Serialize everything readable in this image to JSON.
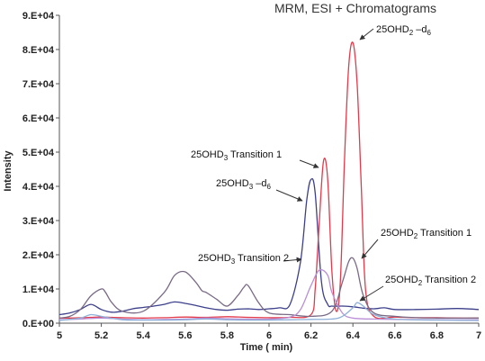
{
  "chart_data": {
    "type": "line",
    "title": "MRM, ESI + Chromatograms",
    "xlabel": "Time ( min)",
    "ylabel": "Intensity",
    "xlim": [
      5,
      7
    ],
    "ylim": [
      0,
      90000
    ],
    "x_ticks": [
      "5",
      "5.2",
      "5.4",
      "5.6",
      "5.8",
      "6",
      "6.2",
      "6.4",
      "6.6",
      "6.8",
      "7"
    ],
    "y_ticks": [
      "0.E+00",
      "1.E+04",
      "2.E+04",
      "3.E+04",
      "4.E+04",
      "5.E+04",
      "6.E+04",
      "7.E+04",
      "8.E+04",
      "9.E+04"
    ],
    "grid": false,
    "colors": {
      "navy": "#3c3f8a",
      "red": "#e23a4a",
      "grey_purple": "#7a6a85",
      "lavender": "#b98fd6",
      "light_blue": "#8fb0d8",
      "annotation": "#333333"
    },
    "annotations": [
      {
        "label": "25OHD",
        "sub": "2",
        "tail": " –d",
        "tail_sub": "6",
        "x": 6.4,
        "y": 82000
      },
      {
        "label": "25OHD",
        "sub": "3",
        "tail": " Transition 1",
        "tail_sub": "",
        "x": 6.28,
        "y": 47000
      },
      {
        "label": "25OHD",
        "sub": "3",
        "tail": " –d",
        "tail_sub": "6",
        "x": 6.2,
        "y": 37000
      },
      {
        "label": "25OHD",
        "sub": "2",
        "tail": " Transition 1",
        "tail_sub": "",
        "x": 6.42,
        "y": 17000
      },
      {
        "label": "25OHD",
        "sub": "3",
        "tail": " Transition 2",
        "tail_sub": "",
        "x": 6.24,
        "y": 15000
      },
      {
        "label": "25OHD",
        "sub": "2",
        "tail": " Transition 2",
        "tail_sub": "",
        "x": 6.42,
        "y": 6000
      }
    ],
    "series": [
      {
        "color": "#3c3f8a",
        "x": [
          5.0,
          5.05,
          5.1,
          5.15,
          5.2,
          5.25,
          5.3,
          5.35,
          5.4,
          5.45,
          5.5,
          5.55,
          5.6,
          5.65,
          5.7,
          5.75,
          5.8,
          5.85,
          5.9,
          5.95,
          6.0,
          6.05,
          6.1,
          6.15,
          6.18,
          6.2,
          6.22,
          6.25,
          6.28,
          6.3,
          6.35,
          6.4,
          6.45,
          6.5,
          6.55,
          6.6,
          6.7,
          6.8,
          6.9,
          7.0
        ],
        "y": [
          2500,
          3000,
          4000,
          5500,
          4000,
          3200,
          3500,
          4200,
          4600,
          5000,
          5500,
          6200,
          5800,
          5200,
          4500,
          4000,
          3800,
          4100,
          4200,
          4000,
          4200,
          4500,
          5500,
          18000,
          36000,
          42000,
          38000,
          12000,
          5500,
          5000,
          5000,
          4800,
          4400,
          4200,
          4500,
          4000,
          4000,
          4100,
          4300,
          4000
        ]
      },
      {
        "color": "#e23a4a",
        "x": [
          5.0,
          5.05,
          5.1,
          5.15,
          5.2,
          5.25,
          5.3,
          5.4,
          5.5,
          5.6,
          5.7,
          5.8,
          5.9,
          6.0,
          6.1,
          6.2,
          6.22,
          6.24,
          6.26,
          6.28,
          6.3,
          6.32,
          6.34,
          6.36,
          6.38,
          6.4,
          6.42,
          6.44,
          6.46,
          6.5,
          6.6,
          6.7,
          6.8,
          6.9,
          7.0
        ],
        "y": [
          1500,
          1500,
          1600,
          1700,
          1800,
          1700,
          1600,
          1500,
          1600,
          1800,
          1700,
          1900,
          1700,
          1600,
          1700,
          2500,
          10000,
          30000,
          47500,
          42000,
          15000,
          3500,
          12000,
          48000,
          75000,
          82000,
          70000,
          40000,
          10000,
          2000,
          1800,
          1600,
          1600,
          1500,
          1500
        ]
      },
      {
        "color": "#7a6a85",
        "x": [
          5.0,
          5.05,
          5.1,
          5.15,
          5.2,
          5.22,
          5.25,
          5.3,
          5.4,
          5.5,
          5.55,
          5.6,
          5.65,
          5.68,
          5.7,
          5.75,
          5.8,
          5.85,
          5.88,
          5.9,
          5.95,
          6.0,
          6.1,
          6.2,
          6.3,
          6.35,
          6.38,
          6.4,
          6.42,
          6.45,
          6.5,
          6.6,
          6.7,
          6.8,
          7.0
        ],
        "y": [
          1500,
          2000,
          4000,
          8000,
          10000,
          9000,
          6000,
          3500,
          3500,
          9000,
          14000,
          15000,
          12000,
          9500,
          9000,
          7000,
          5000,
          8000,
          10500,
          11000,
          6000,
          3000,
          2500,
          2000,
          3500,
          12000,
          18000,
          19000,
          16000,
          8000,
          3000,
          2000,
          1600,
          1500,
          1500
        ]
      },
      {
        "color": "#b98fd6",
        "x": [
          5.0,
          5.1,
          5.2,
          5.3,
          5.4,
          5.5,
          5.6,
          5.7,
          5.8,
          5.9,
          6.0,
          6.1,
          6.15,
          6.2,
          6.24,
          6.28,
          6.3,
          6.35,
          6.4,
          6.5,
          6.6,
          6.8,
          7.0
        ],
        "y": [
          1000,
          1200,
          1500,
          1200,
          1000,
          1100,
          1200,
          1500,
          1300,
          1200,
          1200,
          1800,
          4000,
          11000,
          15500,
          14000,
          9000,
          3000,
          1500,
          1200,
          1100,
          1000,
          1000
        ]
      },
      {
        "color": "#8fb0d8",
        "x": [
          5.0,
          5.1,
          5.15,
          5.2,
          5.3,
          5.4,
          5.5,
          5.6,
          5.7,
          5.8,
          5.9,
          6.0,
          6.1,
          6.2,
          6.3,
          6.35,
          6.4,
          6.42,
          6.45,
          6.5,
          6.6,
          6.8,
          7.0
        ],
        "y": [
          800,
          1500,
          2500,
          2000,
          1000,
          900,
          900,
          1000,
          1200,
          1000,
          900,
          900,
          1000,
          1100,
          1200,
          2000,
          4500,
          6000,
          5000,
          2500,
          1200,
          900,
          800
        ]
      }
    ]
  }
}
